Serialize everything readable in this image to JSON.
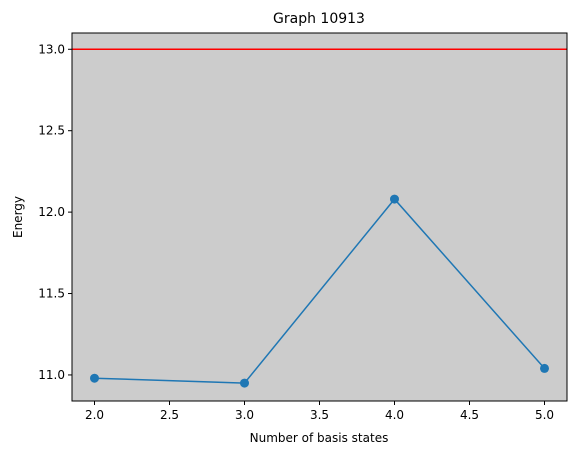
{
  "chart_data": {
    "type": "line",
    "title": "Graph 10913",
    "xlabel": "Number of basis states",
    "ylabel": "Energy",
    "xlim": [
      1.85,
      5.15
    ],
    "ylim": [
      10.84,
      13.1
    ],
    "xticks": [
      2.0,
      2.5,
      3.0,
      3.5,
      4.0,
      4.5,
      5.0
    ],
    "xtick_labels": [
      "2.0",
      "2.5",
      "3.0",
      "3.5",
      "4.0",
      "4.5",
      "5.0"
    ],
    "yticks": [
      11.0,
      11.5,
      12.0,
      12.5,
      13.0
    ],
    "ytick_labels": [
      "11.0",
      "11.5",
      "12.0",
      "12.5",
      "13.0"
    ],
    "grid": false,
    "background_color": "#cccccc",
    "series": [
      {
        "x": [
          2,
          3,
          4,
          5
        ],
        "values": [
          10.98,
          10.95,
          12.08,
          11.04
        ],
        "color": "#1f77b4",
        "marker": "circle"
      }
    ],
    "hlines": [
      {
        "y": 13.0,
        "color": "#ff0000"
      }
    ]
  }
}
